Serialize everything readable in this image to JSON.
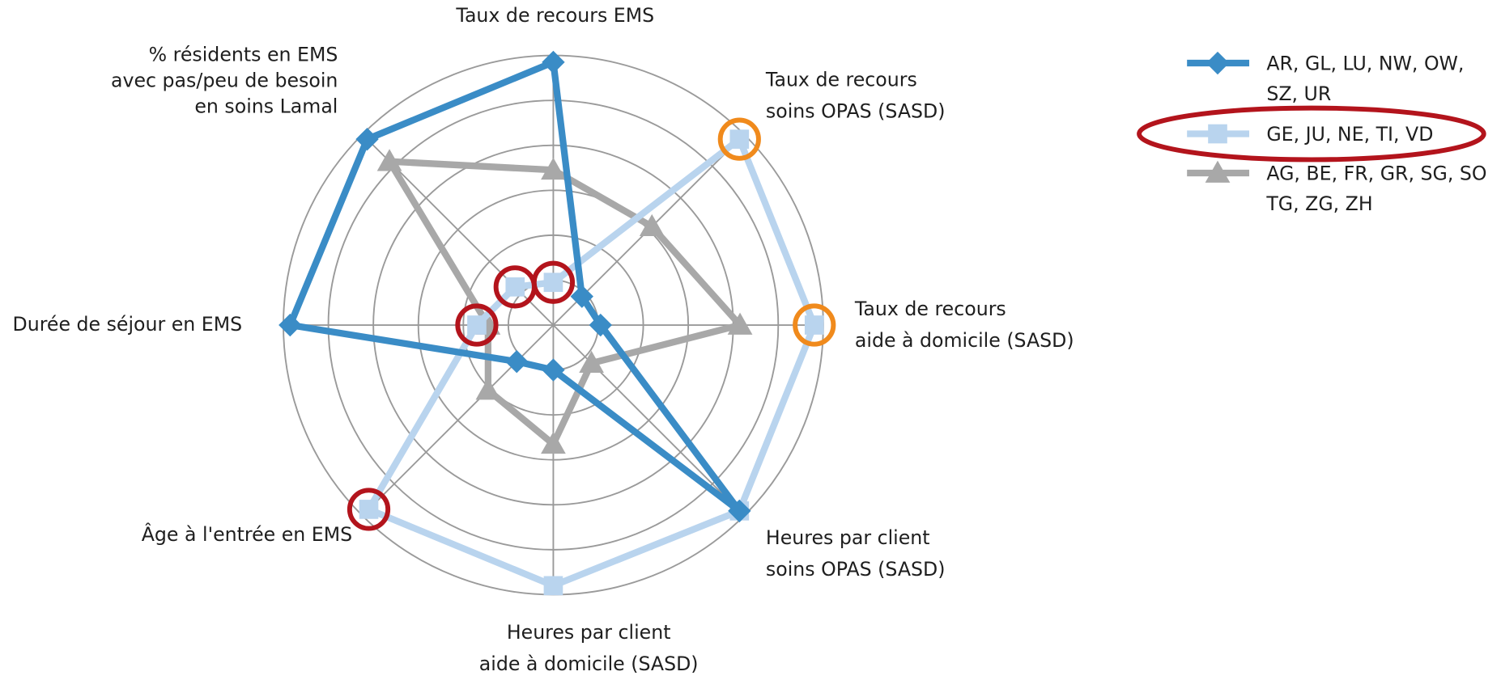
{
  "chart_data": {
    "type": "radar",
    "categories": [
      "Taux de recours EMS",
      "Taux de recours\nsoins OPAS (SASD)",
      "Taux de recours\naide à domicile (SASD)",
      "Heures par client\nsoins OPAS (SASD)",
      "Heures par client\naide à domicile (SASD)",
      "Âge à l'entrée en EMS",
      "Durée de séjour en EMS",
      "% résidents en EMS\navec pas/peu de besoin\nen soins Lamal"
    ],
    "rlim": [
      0,
      6
    ],
    "rticks": [
      1,
      2,
      3,
      4,
      5,
      6
    ],
    "grid": true,
    "legend": "top-right",
    "series": [
      {
        "name": "AR, GL, LU, NW, OW, SZ, UR",
        "color": "#3a8cc6",
        "marker": "diamond",
        "values": [
          5.85,
          0.9,
          1.05,
          5.85,
          1.0,
          1.15,
          5.85,
          5.85
        ]
      },
      {
        "name": "GE, JU, NE, TI, VD",
        "color": "#b9d4ee",
        "marker": "square",
        "values": [
          0.95,
          5.85,
          5.8,
          5.85,
          5.8,
          5.8,
          1.7,
          1.2
        ]
      },
      {
        "name": "AG, BE, FR, GR, SG, SO TG, ZG, ZH",
        "color": "#a8a8a8",
        "marker": "triangle",
        "values": [
          3.45,
          3.1,
          4.15,
          1.2,
          2.65,
          2.05,
          1.45,
          5.15
        ]
      }
    ]
  }
}
